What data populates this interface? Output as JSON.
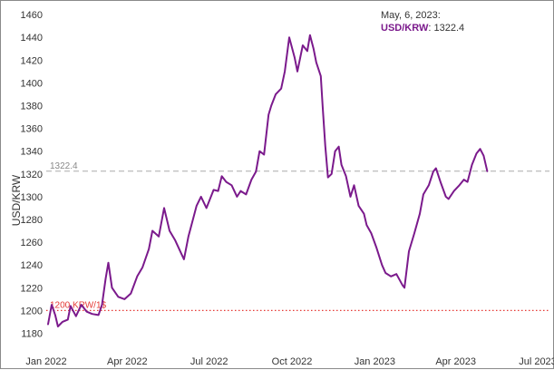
{
  "chart_data": {
    "type": "line",
    "ylabel": "USD/KRW",
    "xlabel": "",
    "ylim": [
      1170,
      1465
    ],
    "xlim": [
      "2022-01-01",
      "2023-07-01"
    ],
    "y_ticks": [
      "1180",
      "1200",
      "1220",
      "1240",
      "1260",
      "1280",
      "1300",
      "1320",
      "1340",
      "1360",
      "1380",
      "1400",
      "1420",
      "1440",
      "1460"
    ],
    "x_ticks": [
      {
        "date": "2022-01-01",
        "label": "Jan 2022"
      },
      {
        "date": "2022-04-01",
        "label": "Apr 2022"
      },
      {
        "date": "2022-07-01",
        "label": "Jul 2022"
      },
      {
        "date": "2022-10-01",
        "label": "Oct 2022"
      },
      {
        "date": "2023-01-01",
        "label": "Jan 2023"
      },
      {
        "date": "2023-04-01",
        "label": "Apr 2023"
      },
      {
        "date": "2023-07-01",
        "label": "Jul 2023"
      }
    ],
    "grid": false,
    "series": [
      {
        "name": "USD/KRW",
        "color": "#7b1a8c",
        "points": [
          [
            "2022-01-03",
            1188
          ],
          [
            "2022-01-07",
            1205
          ],
          [
            "2022-01-11",
            1196
          ],
          [
            "2022-01-14",
            1186
          ],
          [
            "2022-01-19",
            1190
          ],
          [
            "2022-01-25",
            1192
          ],
          [
            "2022-01-28",
            1204
          ],
          [
            "2022-02-03",
            1195
          ],
          [
            "2022-02-09",
            1205
          ],
          [
            "2022-02-15",
            1199
          ],
          [
            "2022-02-21",
            1197
          ],
          [
            "2022-02-28",
            1196
          ],
          [
            "2022-03-04",
            1205
          ],
          [
            "2022-03-08",
            1228
          ],
          [
            "2022-03-11",
            1242
          ],
          [
            "2022-03-15",
            1220
          ],
          [
            "2022-03-22",
            1212
          ],
          [
            "2022-03-29",
            1210
          ],
          [
            "2022-04-05",
            1215
          ],
          [
            "2022-04-12",
            1230
          ],
          [
            "2022-04-18",
            1238
          ],
          [
            "2022-04-25",
            1254
          ],
          [
            "2022-04-29",
            1270
          ],
          [
            "2022-05-06",
            1265
          ],
          [
            "2022-05-12",
            1290
          ],
          [
            "2022-05-18",
            1270
          ],
          [
            "2022-05-24",
            1262
          ],
          [
            "2022-05-31",
            1250
          ],
          [
            "2022-06-03",
            1245
          ],
          [
            "2022-06-08",
            1265
          ],
          [
            "2022-06-13",
            1280
          ],
          [
            "2022-06-17",
            1292
          ],
          [
            "2022-06-22",
            1300
          ],
          [
            "2022-06-28",
            1290
          ],
          [
            "2022-07-06",
            1306
          ],
          [
            "2022-07-11",
            1305
          ],
          [
            "2022-07-15",
            1318
          ],
          [
            "2022-07-20",
            1313
          ],
          [
            "2022-07-26",
            1310
          ],
          [
            "2022-08-01",
            1300
          ],
          [
            "2022-08-05",
            1305
          ],
          [
            "2022-08-11",
            1302
          ],
          [
            "2022-08-17",
            1315
          ],
          [
            "2022-08-22",
            1322
          ],
          [
            "2022-08-26",
            1340
          ],
          [
            "2022-08-31",
            1337
          ],
          [
            "2022-09-05",
            1372
          ],
          [
            "2022-09-08",
            1380
          ],
          [
            "2022-09-13",
            1390
          ],
          [
            "2022-09-19",
            1395
          ],
          [
            "2022-09-23",
            1410
          ],
          [
            "2022-09-28",
            1440
          ],
          [
            "2022-10-04",
            1422
          ],
          [
            "2022-10-07",
            1410
          ],
          [
            "2022-10-13",
            1433
          ],
          [
            "2022-10-18",
            1428
          ],
          [
            "2022-10-21",
            1442
          ],
          [
            "2022-10-25",
            1430
          ],
          [
            "2022-10-28",
            1418
          ],
          [
            "2022-11-02",
            1406
          ],
          [
            "2022-11-04",
            1380
          ],
          [
            "2022-11-07",
            1345
          ],
          [
            "2022-11-10",
            1317
          ],
          [
            "2022-11-14",
            1320
          ],
          [
            "2022-11-18",
            1340
          ],
          [
            "2022-11-22",
            1344
          ],
          [
            "2022-11-25",
            1328
          ],
          [
            "2022-11-30",
            1318
          ],
          [
            "2022-12-05",
            1300
          ],
          [
            "2022-12-09",
            1310
          ],
          [
            "2022-12-14",
            1292
          ],
          [
            "2022-12-20",
            1285
          ],
          [
            "2022-12-23",
            1275
          ],
          [
            "2022-12-28",
            1268
          ],
          [
            "2023-01-03",
            1255
          ],
          [
            "2023-01-09",
            1240
          ],
          [
            "2023-01-13",
            1233
          ],
          [
            "2023-01-19",
            1230
          ],
          [
            "2023-01-25",
            1232
          ],
          [
            "2023-02-01",
            1222
          ],
          [
            "2023-02-03",
            1220
          ],
          [
            "2023-02-08",
            1252
          ],
          [
            "2023-02-14",
            1268
          ],
          [
            "2023-02-20",
            1285
          ],
          [
            "2023-02-24",
            1302
          ],
          [
            "2023-03-02",
            1310
          ],
          [
            "2023-03-07",
            1322
          ],
          [
            "2023-03-10",
            1325
          ],
          [
            "2023-03-15",
            1313
          ],
          [
            "2023-03-21",
            1300
          ],
          [
            "2023-03-24",
            1298
          ],
          [
            "2023-03-30",
            1305
          ],
          [
            "2023-04-05",
            1310
          ],
          [
            "2023-04-10",
            1315
          ],
          [
            "2023-04-14",
            1313
          ],
          [
            "2023-04-19",
            1328
          ],
          [
            "2023-04-24",
            1338
          ],
          [
            "2023-04-28",
            1342
          ],
          [
            "2023-05-02",
            1336
          ],
          [
            "2023-05-06",
            1322.4
          ]
        ]
      }
    ],
    "reference_lines": [
      {
        "value": 1322.4,
        "label": "1322.4",
        "color": "#aaaaaa",
        "style": "dashed"
      },
      {
        "value": 1200,
        "label": "1200 KRW/1$",
        "color": "#e53935",
        "style": "dotted"
      }
    ],
    "tooltip": {
      "date_text": "May, 6, 2023:",
      "series_label": "USD/KRW",
      "value_text": "1322.4",
      "series_color": "#7b1a8c"
    }
  }
}
